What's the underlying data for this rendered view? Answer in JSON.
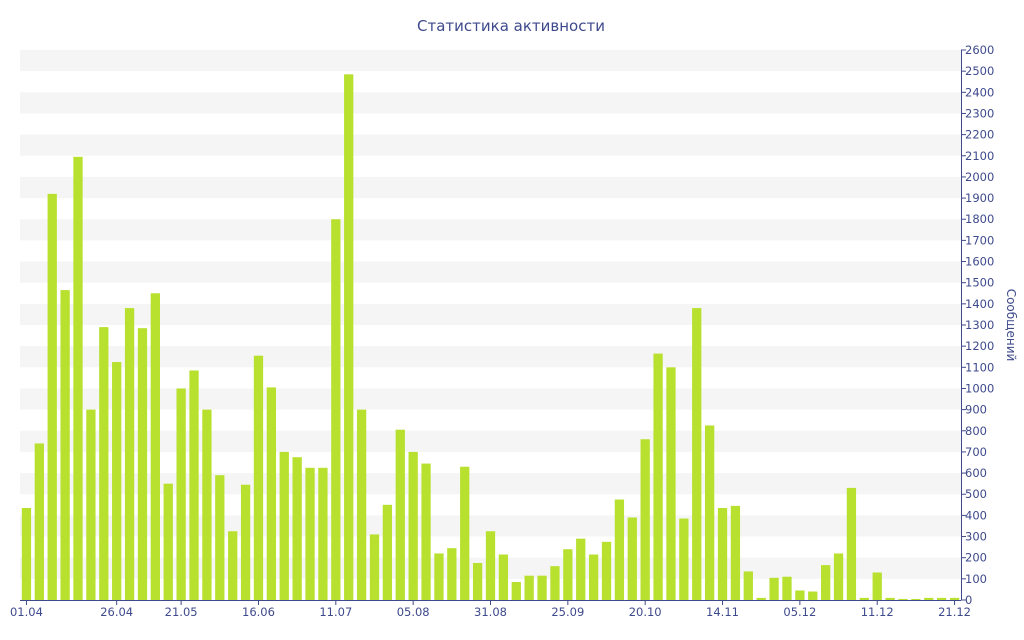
{
  "chart_data": {
    "type": "bar",
    "title": "Статистика активности",
    "xlabel": "",
    "ylabel": "Сообщений",
    "ylim": [
      0,
      2600
    ],
    "ytick_step": 100,
    "grid": "horizontal-bands",
    "bar_color": "#b8e02f",
    "axis_color": "#3e4a8c",
    "band_color": "#f5f5f5",
    "x_tick_labels": [
      "01.04",
      "26.04",
      "21.05",
      "16.06",
      "11.07",
      "05.08",
      "31.08",
      "25.09",
      "20.10",
      "14.11",
      "05.12",
      "11.12",
      "21.12"
    ],
    "x_tick_positions": [
      0,
      7,
      12,
      18,
      24,
      30,
      36,
      42,
      48,
      54,
      60,
      66,
      72
    ],
    "values": [
      435,
      740,
      1920,
      1465,
      2095,
      900,
      1290,
      1125,
      1380,
      1285,
      1450,
      550,
      1000,
      1085,
      900,
      590,
      325,
      545,
      1155,
      1005,
      700,
      675,
      625,
      625,
      1800,
      2485,
      900,
      310,
      450,
      805,
      700,
      645,
      220,
      245,
      630,
      175,
      325,
      215,
      85,
      115,
      115,
      160,
      240,
      290,
      215,
      275,
      475,
      390,
      760,
      1165,
      1100,
      385,
      1380,
      825,
      435,
      445,
      135,
      10,
      105,
      110,
      45,
      40,
      165,
      220,
      530,
      10,
      130,
      10,
      5,
      5,
      10,
      10,
      10
    ]
  }
}
